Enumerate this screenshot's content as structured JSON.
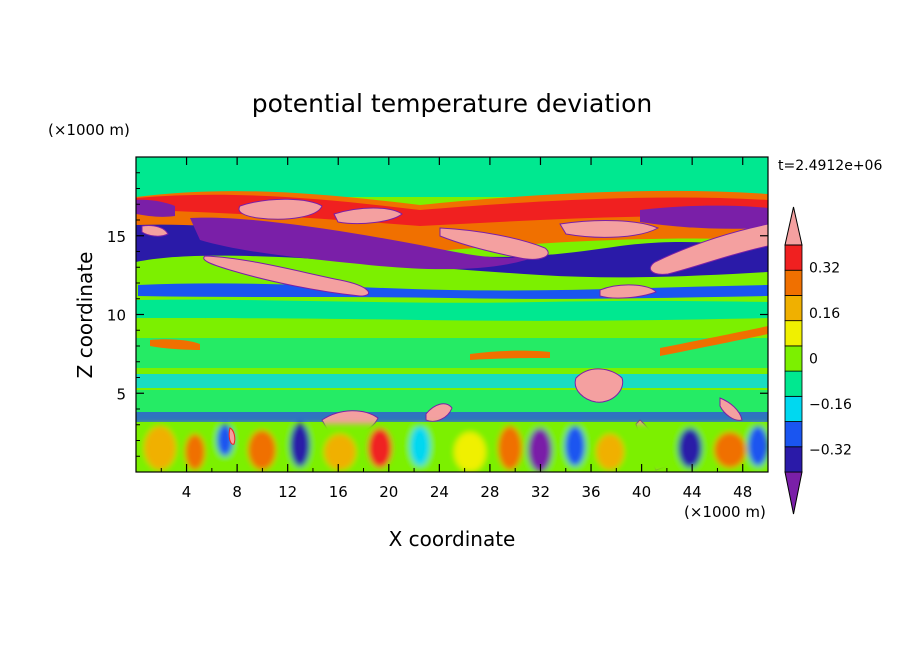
{
  "chart_data": {
    "type": "heatmap",
    "title": "potential temperature deviation",
    "xlabel": "X coordinate",
    "ylabel": "Z coordinate",
    "x_unit": "(×1000 m)",
    "y_unit": "(×1000 m)",
    "time_label": "t=2.4912e+06",
    "xlim": [
      0,
      50
    ],
    "ylim": [
      0,
      20
    ],
    "x_ticks": [
      4,
      8,
      12,
      16,
      20,
      24,
      28,
      32,
      36,
      40,
      44,
      48
    ],
    "y_ticks": [
      5,
      10,
      15
    ],
    "colorbar": {
      "levels": [
        -0.4,
        -0.32,
        -0.24,
        -0.16,
        -0.08,
        0,
        0.08,
        0.16,
        0.24,
        0.32,
        0.4
      ],
      "labels": [
        "0.32",
        "0.16",
        "0",
        "−0.16",
        "−0.32"
      ],
      "label_values": [
        0.32,
        0.16,
        0,
        -0.16,
        -0.32
      ],
      "colors": [
        "#7a1fa8",
        "#2a1aa8",
        "#1a55f0",
        "#00d8f0",
        "#00e890",
        "#7cf000",
        "#f0f000",
        "#f0b000",
        "#f07000",
        "#f02020",
        "#f4a0a0"
      ]
    },
    "features": [
      {
        "value": 0.4,
        "x": [
          10,
          20
        ],
        "z": [
          16,
          17
        ]
      },
      {
        "value": 0.4,
        "x": [
          5,
          22
        ],
        "z": [
          11.5,
          13
        ]
      },
      {
        "value": -0.4,
        "x": [
          7,
          25
        ],
        "z": [
          13.5,
          15.5
        ]
      },
      {
        "value": 0.4,
        "x": [
          26,
          42
        ],
        "z": [
          14,
          15.5
        ]
      },
      {
        "value": -0.4,
        "x": [
          40,
          50
        ],
        "z": [
          15.5,
          17
        ]
      },
      {
        "value": 0.4,
        "x": [
          41,
          50
        ],
        "z": [
          12,
          15
        ]
      },
      {
        "value": 0.4,
        "x": [
          16,
          19
        ],
        "z": [
          2.5,
          4
        ]
      },
      {
        "value": 0.4,
        "x": [
          35,
          38
        ],
        "z": [
          4.5,
          6
        ]
      }
    ]
  }
}
